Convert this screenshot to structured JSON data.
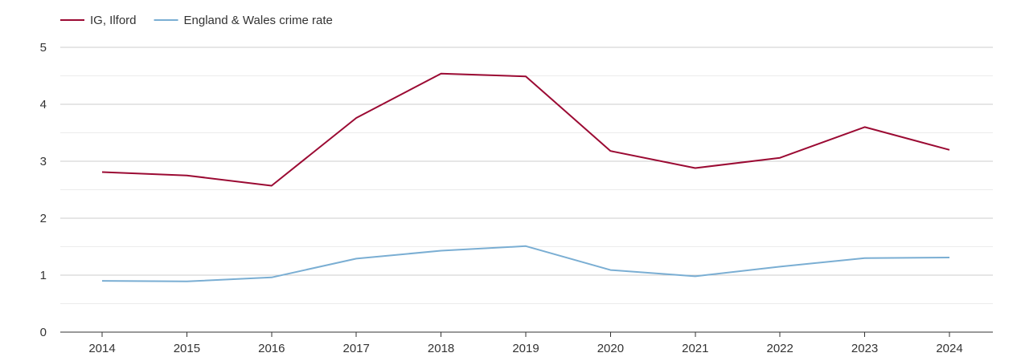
{
  "chart_data": {
    "type": "line",
    "x": [
      "2014",
      "2015",
      "2016",
      "2017",
      "2018",
      "2019",
      "2020",
      "2021",
      "2022",
      "2023",
      "2024"
    ],
    "series": [
      {
        "name": "IG, Ilford",
        "color": "#9b0a33",
        "values": [
          2.81,
          2.75,
          2.57,
          3.76,
          4.54,
          4.49,
          3.18,
          2.88,
          3.06,
          3.6,
          3.2
        ]
      },
      {
        "name": "England & Wales crime rate",
        "color": "#7aaed3",
        "values": [
          0.9,
          0.89,
          0.96,
          1.29,
          1.43,
          1.51,
          1.09,
          0.98,
          1.15,
          1.3,
          1.31
        ]
      }
    ],
    "ylim": [
      0,
      5
    ],
    "yticks": [
      0,
      1,
      2,
      3,
      4,
      5
    ],
    "grid": true,
    "legend_position": "top-left",
    "title": "",
    "xlabel": "",
    "ylabel": ""
  }
}
